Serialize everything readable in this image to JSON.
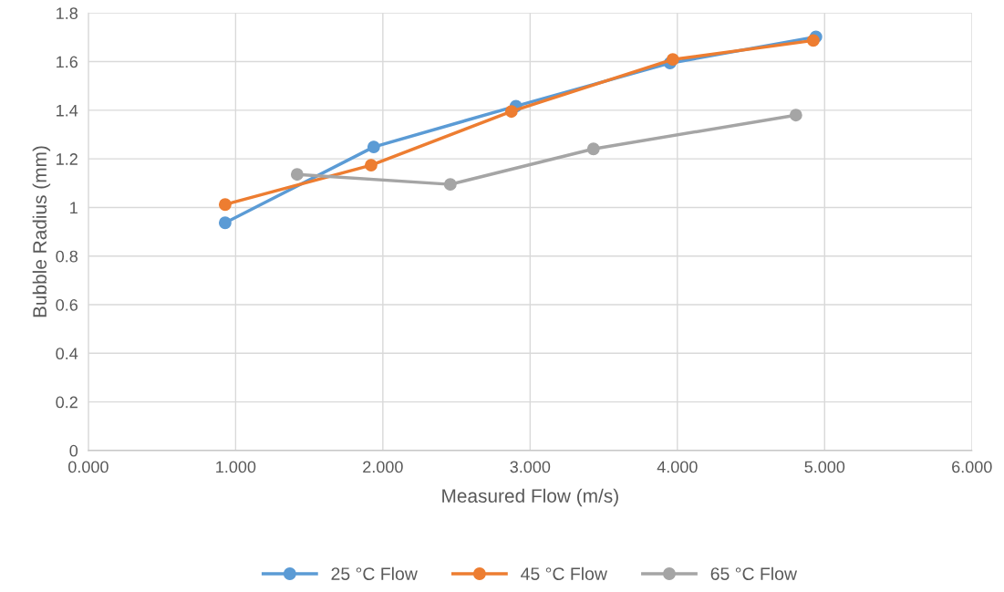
{
  "chart_data": {
    "type": "line",
    "xlabel": "Measured Flow (m/s)",
    "ylabel": "Bubble Radius (mm)",
    "series": [
      {
        "name": "25 °C Flow",
        "color": "#5b9bd5",
        "x": [
          0.929,
          1.938,
          2.904,
          3.95,
          4.941
        ],
        "values": [
          0.937,
          1.249,
          1.417,
          1.594,
          1.702
        ]
      },
      {
        "name": "45 °C Flow",
        "color": "#ed7d31",
        "x": [
          0.929,
          1.92,
          2.873,
          3.969,
          4.923
        ],
        "values": [
          1.012,
          1.174,
          1.395,
          1.609,
          1.687
        ]
      },
      {
        "name": "65 °C Flow",
        "color": "#a5a5a5",
        "x": [
          1.418,
          2.458,
          3.43,
          4.805
        ],
        "values": [
          1.136,
          1.095,
          1.241,
          1.38
        ]
      }
    ],
    "xlim": [
      0,
      6
    ],
    "xticks": [
      {
        "value": 0,
        "label": "0.000"
      },
      {
        "value": 1,
        "label": "1.000"
      },
      {
        "value": 2,
        "label": "2.000"
      },
      {
        "value": 3,
        "label": "3.000"
      },
      {
        "value": 4,
        "label": "4.000"
      },
      {
        "value": 5,
        "label": "5.000"
      },
      {
        "value": 6,
        "label": "6.000"
      }
    ],
    "ylim": [
      0,
      1.8
    ],
    "yticks": [
      0,
      0.2,
      0.4,
      0.6,
      0.8,
      1,
      1.2,
      1.4,
      1.6,
      1.8
    ],
    "grid": true,
    "legend": "bottom",
    "marker": "circle",
    "line_style": "solid"
  }
}
